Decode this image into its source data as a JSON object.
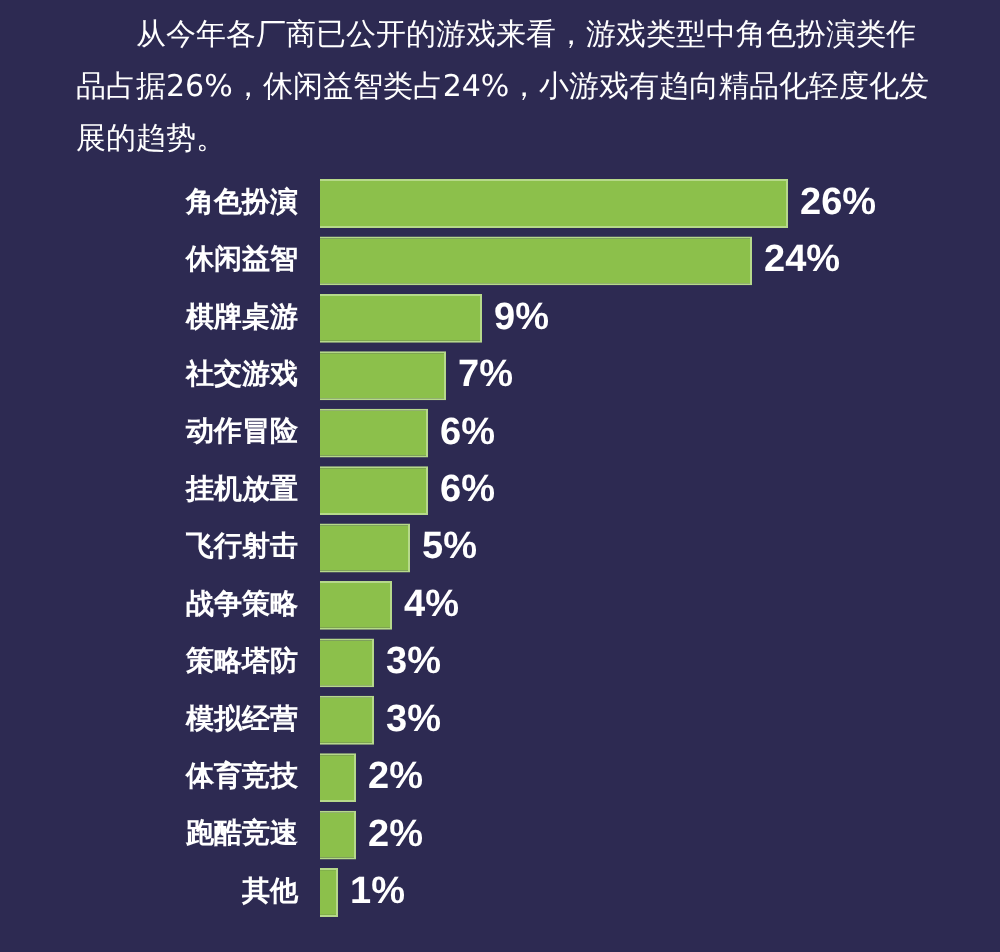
{
  "chart_data": {
    "type": "bar",
    "orientation": "horizontal",
    "title": "从今年各厂商已公开的游戏来看，游戏类型中角色扮演类作品占据26%，休闲益智类占24%，小游戏有趋向精品化轻度化发展的趋势。",
    "categories": [
      "角色扮演",
      "休闲益智",
      "棋牌桌游",
      "社交游戏",
      "动作冒险",
      "挂机放置",
      "飞行射击",
      "战争策略",
      "策略塔防",
      "模拟经营",
      "体育竞技",
      "跑酷竞速",
      "其他"
    ],
    "values": [
      26,
      24,
      9,
      7,
      6,
      6,
      5,
      4,
      3,
      3,
      2,
      2,
      1
    ],
    "value_labels": [
      "26%",
      "24%",
      "9%",
      "7%",
      "6%",
      "6%",
      "5%",
      "4%",
      "3%",
      "3%",
      "2%",
      "2%",
      "1%"
    ],
    "color": "#8cc04b",
    "tick_labels": "y"
  }
}
